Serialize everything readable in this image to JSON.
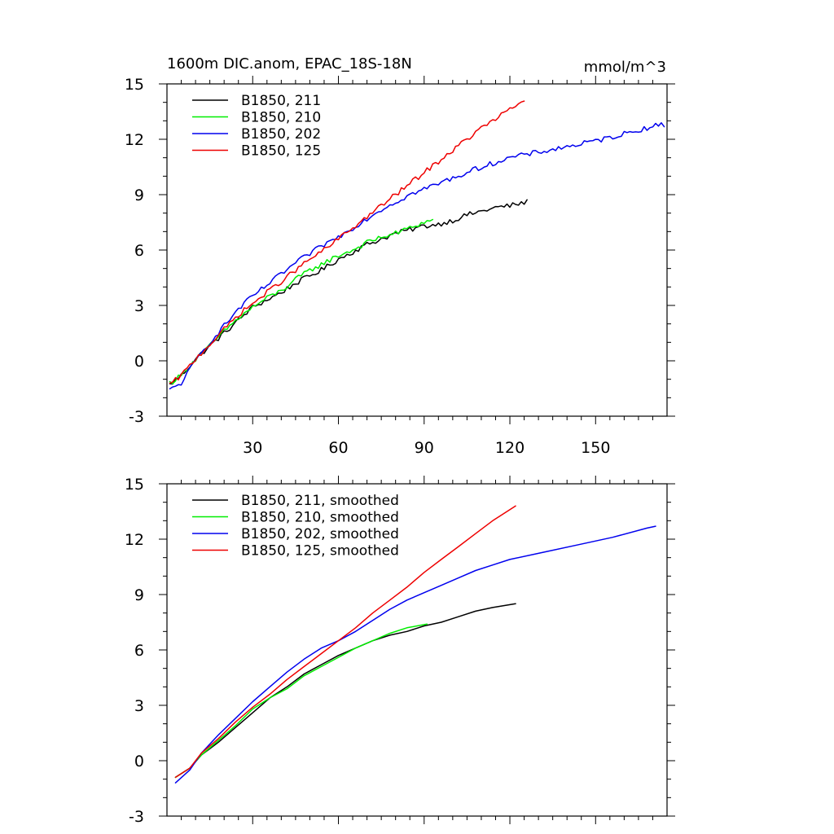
{
  "chart_data": [
    {
      "type": "line",
      "title": "1600m DIC.anom, EPAC_18S-18N",
      "units": "mmol/m^3",
      "xlim": [
        0,
        175
      ],
      "ylim": [
        -3,
        15
      ],
      "xticks": [
        30,
        60,
        90,
        120,
        150
      ],
      "yticks": [
        -3,
        0,
        3,
        6,
        9,
        12,
        15
      ],
      "xtick_labels": [
        "30",
        "60",
        "90",
        "120",
        "150"
      ],
      "ytick_labels": [
        "-3",
        "0",
        "3",
        "6",
        "9",
        "12",
        "15"
      ],
      "legend_position": "top-left",
      "grid": false,
      "series": [
        {
          "name": "B1850, 211",
          "color": "#000000",
          "noisy": true,
          "points": [
            [
              1,
              -1.3
            ],
            [
              5,
              -0.8
            ],
            [
              10,
              0.1
            ],
            [
              15,
              0.8
            ],
            [
              20,
              1.5
            ],
            [
              25,
              2.2
            ],
            [
              30,
              2.9
            ],
            [
              35,
              3.3
            ],
            [
              40,
              3.7
            ],
            [
              45,
              4.2
            ],
            [
              50,
              4.6
            ],
            [
              55,
              5.0
            ],
            [
              60,
              5.5
            ],
            [
              65,
              5.9
            ],
            [
              70,
              6.3
            ],
            [
              75,
              6.6
            ],
            [
              80,
              6.9
            ],
            [
              85,
              7.1
            ],
            [
              90,
              7.3
            ],
            [
              95,
              7.4
            ],
            [
              100,
              7.6
            ],
            [
              105,
              7.9
            ],
            [
              110,
              8.1
            ],
            [
              115,
              8.3
            ],
            [
              120,
              8.4
            ],
            [
              126,
              8.6
            ]
          ]
        },
        {
          "name": "B1850, 210",
          "color": "#00ee00",
          "noisy": true,
          "points": [
            [
              1,
              -1.2
            ],
            [
              5,
              -0.8
            ],
            [
              10,
              0.1
            ],
            [
              15,
              0.8
            ],
            [
              20,
              1.6
            ],
            [
              25,
              2.3
            ],
            [
              30,
              2.9
            ],
            [
              35,
              3.4
            ],
            [
              40,
              3.8
            ],
            [
              45,
              4.4
            ],
            [
              50,
              4.9
            ],
            [
              55,
              5.3
            ],
            [
              60,
              5.7
            ],
            [
              65,
              6.0
            ],
            [
              70,
              6.4
            ],
            [
              75,
              6.7
            ],
            [
              80,
              6.9
            ],
            [
              85,
              7.2
            ],
            [
              90,
              7.5
            ],
            [
              93,
              7.6
            ]
          ]
        },
        {
          "name": "B1850, 202",
          "color": "#0000ee",
          "noisy": true,
          "points": [
            [
              1,
              -1.6
            ],
            [
              5,
              -1.2
            ],
            [
              10,
              0.0
            ],
            [
              15,
              1.0
            ],
            [
              20,
              1.9
            ],
            [
              25,
              2.8
            ],
            [
              30,
              3.5
            ],
            [
              35,
              4.1
            ],
            [
              40,
              4.7
            ],
            [
              45,
              5.3
            ],
            [
              50,
              5.8
            ],
            [
              55,
              6.3
            ],
            [
              60,
              6.7
            ],
            [
              65,
              7.2
            ],
            [
              70,
              7.7
            ],
            [
              75,
              8.2
            ],
            [
              80,
              8.6
            ],
            [
              85,
              9.0
            ],
            [
              90,
              9.3
            ],
            [
              95,
              9.6
            ],
            [
              100,
              9.9
            ],
            [
              105,
              10.2
            ],
            [
              110,
              10.5
            ],
            [
              120,
              11.0
            ],
            [
              130,
              11.3
            ],
            [
              140,
              11.6
            ],
            [
              150,
              11.9
            ],
            [
              160,
              12.3
            ],
            [
              170,
              12.7
            ],
            [
              174,
              12.8
            ]
          ]
        },
        {
          "name": "B1850, 125",
          "color": "#ee0000",
          "noisy": true,
          "points": [
            [
              1,
              -1.3
            ],
            [
              5,
              -0.8
            ],
            [
              10,
              0.1
            ],
            [
              15,
              0.9
            ],
            [
              20,
              1.7
            ],
            [
              25,
              2.5
            ],
            [
              30,
              3.1
            ],
            [
              35,
              3.7
            ],
            [
              40,
              4.3
            ],
            [
              45,
              4.9
            ],
            [
              50,
              5.5
            ],
            [
              55,
              6.0
            ],
            [
              60,
              6.6
            ],
            [
              65,
              7.2
            ],
            [
              70,
              7.8
            ],
            [
              75,
              8.4
            ],
            [
              80,
              9.0
            ],
            [
              85,
              9.6
            ],
            [
              90,
              10.2
            ],
            [
              95,
              10.8
            ],
            [
              100,
              11.4
            ],
            [
              105,
              12.0
            ],
            [
              110,
              12.6
            ],
            [
              115,
              13.1
            ],
            [
              120,
              13.6
            ],
            [
              125,
              14.1
            ]
          ]
        }
      ]
    },
    {
      "type": "line",
      "xlim": [
        0,
        175
      ],
      "ylim": [
        -3,
        15
      ],
      "xticks": [
        30,
        60,
        90,
        120,
        150
      ],
      "yticks": [
        -3,
        0,
        3,
        6,
        9,
        12,
        15
      ],
      "xtick_labels": [],
      "ytick_labels": [
        "-3",
        "0",
        "3",
        "6",
        "9",
        "12",
        "15"
      ],
      "legend_position": "top-left",
      "grid": false,
      "series": [
        {
          "name": "B1850, 211, smoothed",
          "color": "#000000",
          "noisy": false,
          "points": [
            [
              3,
              -0.9
            ],
            [
              8,
              -0.4
            ],
            [
              12,
              0.3
            ],
            [
              18,
              1.0
            ],
            [
              24,
              1.8
            ],
            [
              30,
              2.6
            ],
            [
              36,
              3.4
            ],
            [
              42,
              4.0
            ],
            [
              48,
              4.7
            ],
            [
              54,
              5.2
            ],
            [
              60,
              5.7
            ],
            [
              66,
              6.1
            ],
            [
              72,
              6.5
            ],
            [
              78,
              6.8
            ],
            [
              84,
              7.0
            ],
            [
              90,
              7.3
            ],
            [
              96,
              7.5
            ],
            [
              102,
              7.8
            ],
            [
              108,
              8.1
            ],
            [
              114,
              8.3
            ],
            [
              122,
              8.5
            ]
          ]
        },
        {
          "name": "B1850, 210, smoothed",
          "color": "#00ee00",
          "noisy": false,
          "points": [
            [
              3,
              -0.9
            ],
            [
              8,
              -0.4
            ],
            [
              12,
              0.3
            ],
            [
              18,
              1.1
            ],
            [
              24,
              1.9
            ],
            [
              30,
              2.8
            ],
            [
              36,
              3.4
            ],
            [
              42,
              3.9
            ],
            [
              48,
              4.6
            ],
            [
              54,
              5.1
            ],
            [
              60,
              5.6
            ],
            [
              66,
              6.1
            ],
            [
              72,
              6.5
            ],
            [
              78,
              6.9
            ],
            [
              84,
              7.2
            ],
            [
              91,
              7.4
            ]
          ]
        },
        {
          "name": "B1850, 202, smoothed",
          "color": "#0000ee",
          "noisy": false,
          "points": [
            [
              3,
              -1.2
            ],
            [
              8,
              -0.5
            ],
            [
              12,
              0.4
            ],
            [
              18,
              1.4
            ],
            [
              24,
              2.3
            ],
            [
              30,
              3.2
            ],
            [
              36,
              4.0
            ],
            [
              42,
              4.8
            ],
            [
              48,
              5.5
            ],
            [
              54,
              6.1
            ],
            [
              60,
              6.5
            ],
            [
              66,
              7.0
            ],
            [
              72,
              7.6
            ],
            [
              78,
              8.2
            ],
            [
              84,
              8.7
            ],
            [
              90,
              9.1
            ],
            [
              96,
              9.5
            ],
            [
              102,
              9.9
            ],
            [
              108,
              10.3
            ],
            [
              114,
              10.6
            ],
            [
              120,
              10.9
            ],
            [
              132,
              11.3
            ],
            [
              144,
              11.7
            ],
            [
              156,
              12.1
            ],
            [
              168,
              12.6
            ],
            [
              171,
              12.7
            ]
          ]
        },
        {
          "name": "B1850, 125, smoothed",
          "color": "#ee0000",
          "noisy": false,
          "points": [
            [
              3,
              -0.9
            ],
            [
              8,
              -0.4
            ],
            [
              12,
              0.4
            ],
            [
              18,
              1.2
            ],
            [
              24,
              2.1
            ],
            [
              30,
              2.9
            ],
            [
              36,
              3.6
            ],
            [
              42,
              4.4
            ],
            [
              48,
              5.1
            ],
            [
              54,
              5.8
            ],
            [
              60,
              6.5
            ],
            [
              66,
              7.2
            ],
            [
              72,
              8.0
            ],
            [
              78,
              8.7
            ],
            [
              84,
              9.4
            ],
            [
              90,
              10.2
            ],
            [
              96,
              10.9
            ],
            [
              102,
              11.6
            ],
            [
              108,
              12.3
            ],
            [
              114,
              13.0
            ],
            [
              122,
              13.8
            ]
          ]
        }
      ]
    }
  ]
}
